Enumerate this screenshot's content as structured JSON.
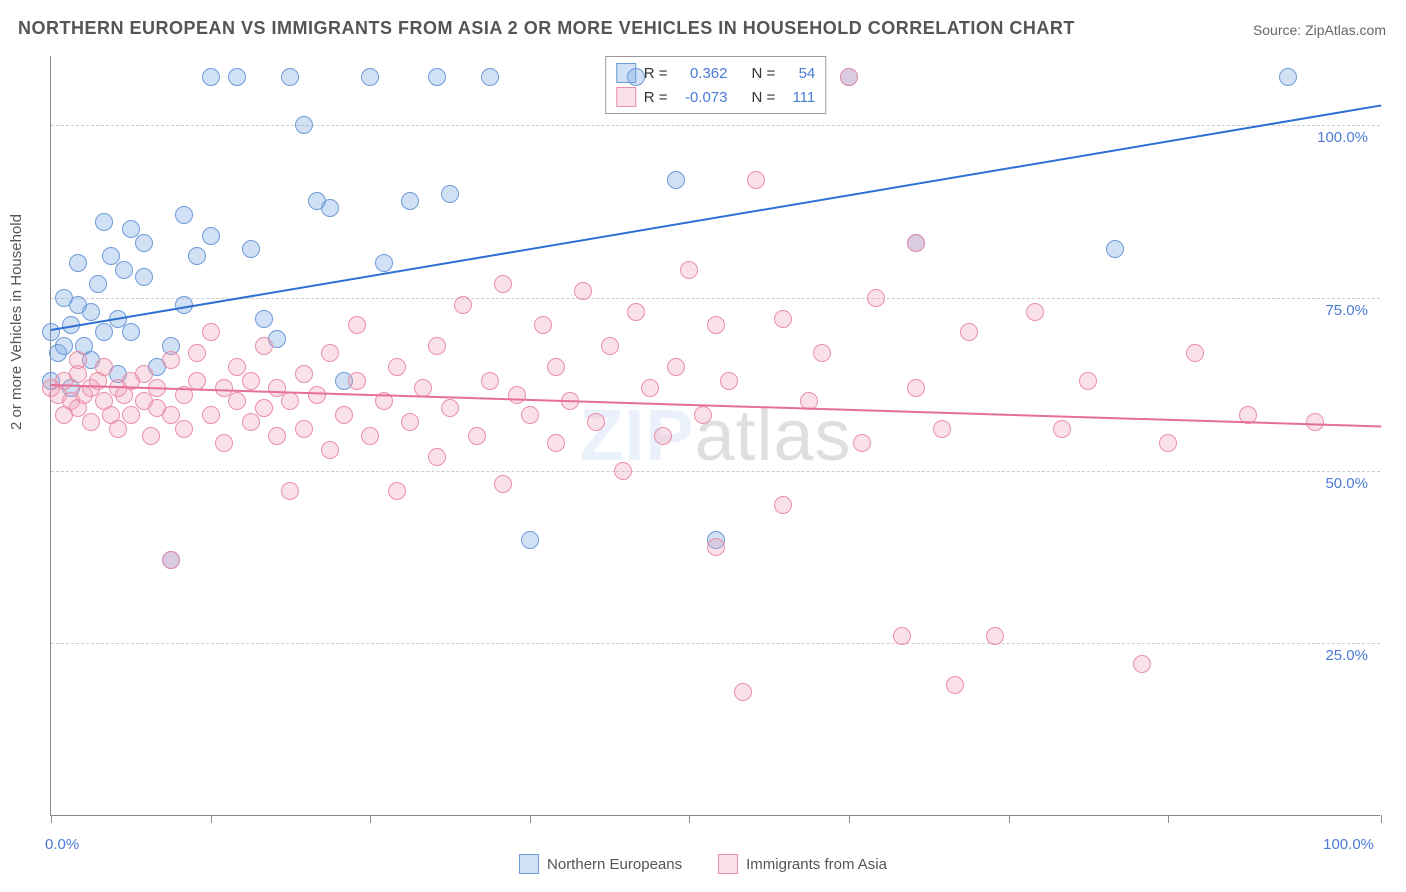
{
  "title": "NORTHERN EUROPEAN VS IMMIGRANTS FROM ASIA 2 OR MORE VEHICLES IN HOUSEHOLD CORRELATION CHART",
  "source": "Source: ZipAtlas.com",
  "ylabel": "2 or more Vehicles in Household",
  "watermark_a": "ZIP",
  "watermark_b": "atlas",
  "chart": {
    "type": "scatter",
    "xlim": [
      0,
      100
    ],
    "ylim": [
      0,
      110
    ],
    "xtick_positions": [
      0,
      12,
      24,
      36,
      48,
      60,
      72,
      84,
      100
    ],
    "xtick_labels": {
      "0": "0.0%",
      "100": "100.0%"
    },
    "ytick_positions": [
      25,
      50,
      75,
      100
    ],
    "ytick_labels": {
      "25": "25.0%",
      "50": "50.0%",
      "75": "75.0%",
      "100": "100.0%"
    },
    "grid_color": "#cccccc",
    "background_color": "#ffffff",
    "marker_radius": 9,
    "marker_border_width": 1.5,
    "series": [
      {
        "name": "Northern Europeans",
        "fill": "rgba(120,165,225,0.35)",
        "stroke": "#6f9bd8",
        "trend_color": "#2e6fd4",
        "trend_y0": 70.5,
        "trend_y100": 103.0,
        "r_label": "R =",
        "r": "0.362",
        "n_label": "N =",
        "n": "54",
        "points": [
          [
            0,
            70
          ],
          [
            0,
            63
          ],
          [
            0.5,
            67
          ],
          [
            1,
            68
          ],
          [
            1,
            75
          ],
          [
            1.5,
            71
          ],
          [
            1.5,
            62
          ],
          [
            2,
            74
          ],
          [
            2,
            80
          ],
          [
            2.5,
            68
          ],
          [
            3,
            73
          ],
          [
            3,
            66
          ],
          [
            3.5,
            77
          ],
          [
            4,
            70
          ],
          [
            4,
            86
          ],
          [
            4.5,
            81
          ],
          [
            5,
            72
          ],
          [
            5,
            64
          ],
          [
            5.5,
            79
          ],
          [
            6,
            85
          ],
          [
            6,
            70
          ],
          [
            7,
            78
          ],
          [
            7,
            83
          ],
          [
            8,
            65
          ],
          [
            9,
            68
          ],
          [
            9,
            37
          ],
          [
            10,
            87
          ],
          [
            10,
            74
          ],
          [
            11,
            81
          ],
          [
            12,
            107
          ],
          [
            12,
            84
          ],
          [
            14,
            107
          ],
          [
            15,
            82
          ],
          [
            16,
            72
          ],
          [
            17,
            69
          ],
          [
            18,
            107
          ],
          [
            19,
            100
          ],
          [
            20,
            89
          ],
          [
            21,
            88
          ],
          [
            22,
            63
          ],
          [
            24,
            107
          ],
          [
            25,
            80
          ],
          [
            27,
            89
          ],
          [
            29,
            107
          ],
          [
            30,
            90
          ],
          [
            33,
            107
          ],
          [
            36,
            40
          ],
          [
            44,
            107
          ],
          [
            47,
            92
          ],
          [
            50,
            40
          ],
          [
            60,
            107
          ],
          [
            65,
            83
          ],
          [
            80,
            82
          ],
          [
            93,
            107
          ]
        ]
      },
      {
        "name": "Immigrants from Asia",
        "fill": "rgba(240,155,180,0.30)",
        "stroke": "#e98fa9",
        "trend_color": "#e66f98",
        "trend_y0": 62.5,
        "trend_y100": 56.5,
        "r_label": "R =",
        "r": "-0.073",
        "n_label": "N =",
        "n": "111",
        "points": [
          [
            0,
            62
          ],
          [
            0.5,
            61
          ],
          [
            1,
            63
          ],
          [
            1,
            58
          ],
          [
            1.5,
            60
          ],
          [
            2,
            64
          ],
          [
            2,
            59
          ],
          [
            2,
            66
          ],
          [
            2.5,
            61
          ],
          [
            3,
            62
          ],
          [
            3,
            57
          ],
          [
            3.5,
            63
          ],
          [
            4,
            60
          ],
          [
            4,
            65
          ],
          [
            4.5,
            58
          ],
          [
            5,
            62
          ],
          [
            5,
            56
          ],
          [
            5.5,
            61
          ],
          [
            6,
            63
          ],
          [
            6,
            58
          ],
          [
            7,
            60
          ],
          [
            7,
            64
          ],
          [
            7.5,
            55
          ],
          [
            8,
            59
          ],
          [
            8,
            62
          ],
          [
            9,
            58
          ],
          [
            9,
            66
          ],
          [
            9,
            37
          ],
          [
            10,
            61
          ],
          [
            10,
            56
          ],
          [
            11,
            63
          ],
          [
            11,
            67
          ],
          [
            12,
            58
          ],
          [
            12,
            70
          ],
          [
            13,
            62
          ],
          [
            13,
            54
          ],
          [
            14,
            60
          ],
          [
            14,
            65
          ],
          [
            15,
            57
          ],
          [
            15,
            63
          ],
          [
            16,
            59
          ],
          [
            16,
            68
          ],
          [
            17,
            55
          ],
          [
            17,
            62
          ],
          [
            18,
            60
          ],
          [
            18,
            47
          ],
          [
            19,
            64
          ],
          [
            19,
            56
          ],
          [
            20,
            61
          ],
          [
            21,
            67
          ],
          [
            21,
            53
          ],
          [
            22,
            58
          ],
          [
            23,
            63
          ],
          [
            23,
            71
          ],
          [
            24,
            55
          ],
          [
            25,
            60
          ],
          [
            26,
            65
          ],
          [
            26,
            47
          ],
          [
            27,
            57
          ],
          [
            28,
            62
          ],
          [
            29,
            52
          ],
          [
            29,
            68
          ],
          [
            30,
            59
          ],
          [
            31,
            74
          ],
          [
            32,
            55
          ],
          [
            33,
            63
          ],
          [
            34,
            48
          ],
          [
            34,
            77
          ],
          [
            35,
            61
          ],
          [
            36,
            58
          ],
          [
            37,
            71
          ],
          [
            38,
            54
          ],
          [
            38,
            65
          ],
          [
            39,
            60
          ],
          [
            40,
            76
          ],
          [
            41,
            57
          ],
          [
            42,
            68
          ],
          [
            43,
            50
          ],
          [
            44,
            73
          ],
          [
            45,
            62
          ],
          [
            46,
            55
          ],
          [
            47,
            65
          ],
          [
            48,
            79
          ],
          [
            49,
            58
          ],
          [
            50,
            71
          ],
          [
            50,
            39
          ],
          [
            51,
            63
          ],
          [
            52,
            18
          ],
          [
            53,
            92
          ],
          [
            55,
            72
          ],
          [
            55,
            45
          ],
          [
            57,
            60
          ],
          [
            58,
            67
          ],
          [
            60,
            107
          ],
          [
            61,
            54
          ],
          [
            62,
            75
          ],
          [
            64,
            26
          ],
          [
            65,
            62
          ],
          [
            65,
            83
          ],
          [
            67,
            56
          ],
          [
            68,
            19
          ],
          [
            69,
            70
          ],
          [
            71,
            26
          ],
          [
            74,
            73
          ],
          [
            76,
            56
          ],
          [
            78,
            63
          ],
          [
            82,
            22
          ],
          [
            84,
            54
          ],
          [
            86,
            67
          ],
          [
            90,
            58
          ],
          [
            95,
            57
          ]
        ]
      }
    ]
  },
  "legend": {
    "a": "Northern Europeans",
    "b": "Immigrants from Asia"
  }
}
